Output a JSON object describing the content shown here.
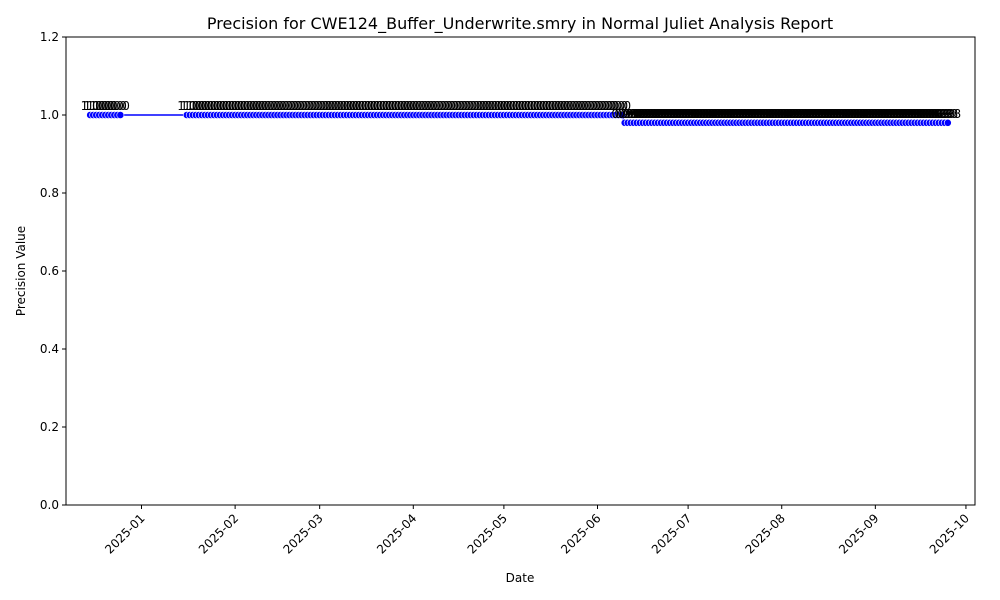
{
  "chart_data": {
    "type": "line",
    "title": "Precision for CWE124_Buffer_Underwrite.smry in Normal Juliet Analysis Report",
    "xlabel": "Date",
    "ylabel": "Precision Value",
    "ylim": [
      0,
      1.2
    ],
    "yticks": [
      "0.0",
      "0.2",
      "0.4",
      "0.6",
      "0.8",
      "1.0",
      "1.2"
    ],
    "xlim": [
      "2024-12-07",
      "2025-10-04"
    ],
    "xticks": [
      "2025-01",
      "2025-02",
      "2025-03",
      "2025-04",
      "2025-05",
      "2025-06",
      "2025-07",
      "2025-08",
      "2025-09",
      "2025-10"
    ],
    "grid": false,
    "line_color": "#0000ff",
    "marker_color": "#0000ff",
    "segments": [
      {
        "start": "2024-12-15",
        "end": "2024-12-25",
        "value": 1.0,
        "label": "1.0"
      },
      {
        "start": "2025-01-16",
        "end": "2025-06-09",
        "value": 1.0,
        "label": "1.0"
      },
      {
        "start": "2025-06-10",
        "end": "2025-09-25",
        "value": 0.98,
        "label": "0.98"
      }
    ]
  }
}
